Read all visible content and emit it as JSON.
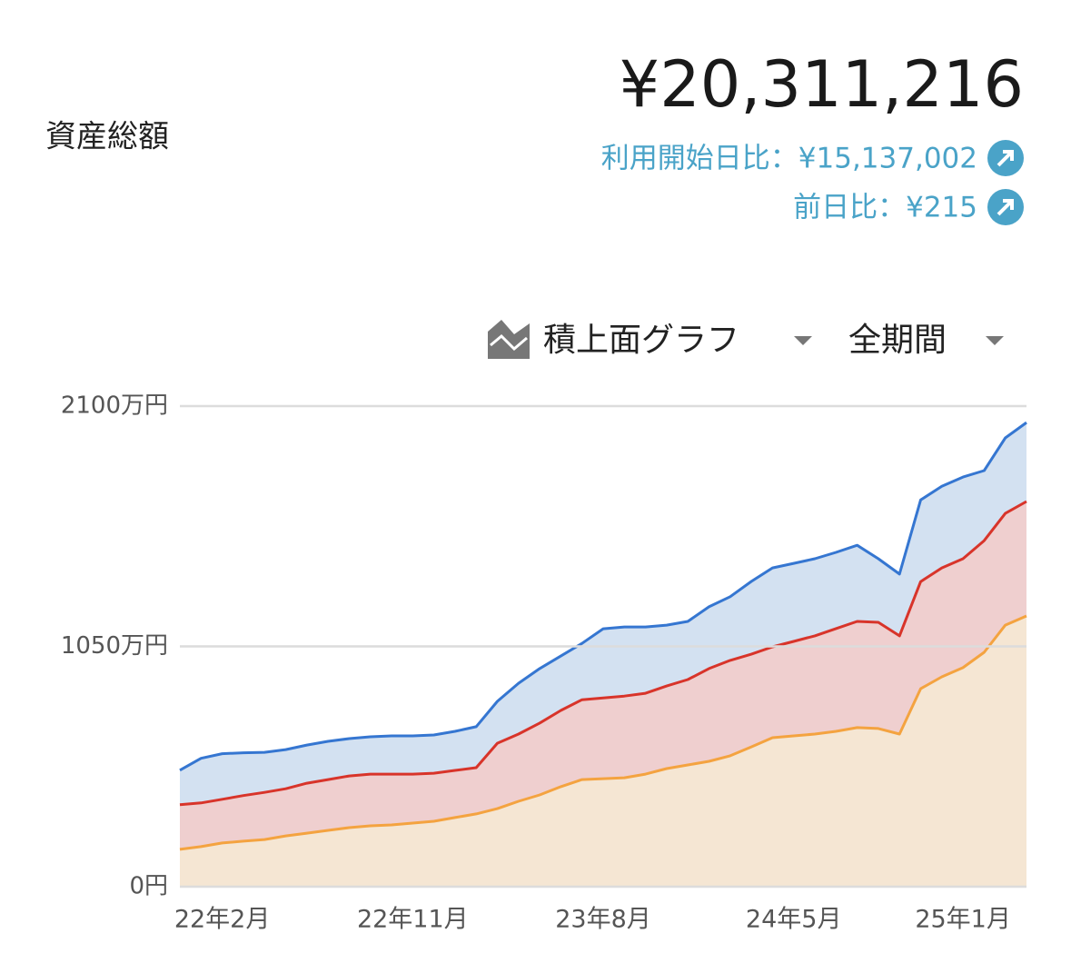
{
  "header": {
    "label": "資産総額",
    "total": "¥20,311,216",
    "since_start": "利用開始日比：¥15,137,002",
    "daily": "前日比：¥215"
  },
  "controls": {
    "chart_type": "積上面グラフ",
    "period": "全期間"
  },
  "chart_data": {
    "type": "stacked_area",
    "categories": [
      null,
      null,
      "22年2月",
      null,
      null,
      null,
      null,
      null,
      null,
      null,
      null,
      "22年11月",
      null,
      null,
      null,
      null,
      null,
      null,
      null,
      null,
      "23年8月",
      null,
      null,
      null,
      null,
      null,
      null,
      null,
      null,
      "24年5月",
      null,
      null,
      null,
      null,
      null,
      null,
      null,
      "25年1月",
      null,
      null,
      null
    ],
    "series": [
      {
        "color": "#f4a340",
        "fill": "#f5e6d3",
        "values": [
          163,
          175,
          191,
          199,
          206,
          222,
          234,
          246,
          258,
          266,
          270,
          278,
          286,
          302,
          318,
          341,
          373,
          401,
          437,
          468,
          472,
          476,
          492,
          516,
          532,
          548,
          572,
          611,
          651,
          659,
          667,
          679,
          695,
          691,
          667,
          865,
          917,
          957,
          1024,
          1143,
          1183
        ]
      },
      {
        "color": "#d8342a",
        "fill": "#efcfcf",
        "values": [
          195,
          191,
          191,
          199,
          206,
          206,
          218,
          222,
          226,
          226,
          222,
          214,
          210,
          206,
          202,
          286,
          294,
          314,
          333,
          349,
          353,
          357,
          353,
          361,
          373,
          405,
          417,
          405,
          397,
          413,
          429,
          449,
          464,
          464,
          429,
          468,
          476,
          476,
          488,
          488,
          500
        ]
      },
      {
        "color": "#3576d1",
        "fill": "#d3e1f1",
        "values": [
          151,
          195,
          199,
          187,
          175,
          171,
          167,
          167,
          163,
          163,
          167,
          167,
          167,
          171,
          179,
          183,
          222,
          238,
          238,
          246,
          302,
          302,
          290,
          266,
          254,
          270,
          278,
          318,
          345,
          341,
          337,
          333,
          333,
          278,
          270,
          357,
          357,
          357,
          306,
          330,
          345
        ]
      }
    ],
    "ylim": [
      0,
      2100
    ],
    "yticks": [
      {
        "value": 0,
        "label": "0円"
      },
      {
        "value": 1050,
        "label": "1050万円"
      },
      {
        "value": 2100,
        "label": "2100万円"
      }
    ],
    "grid": true
  }
}
